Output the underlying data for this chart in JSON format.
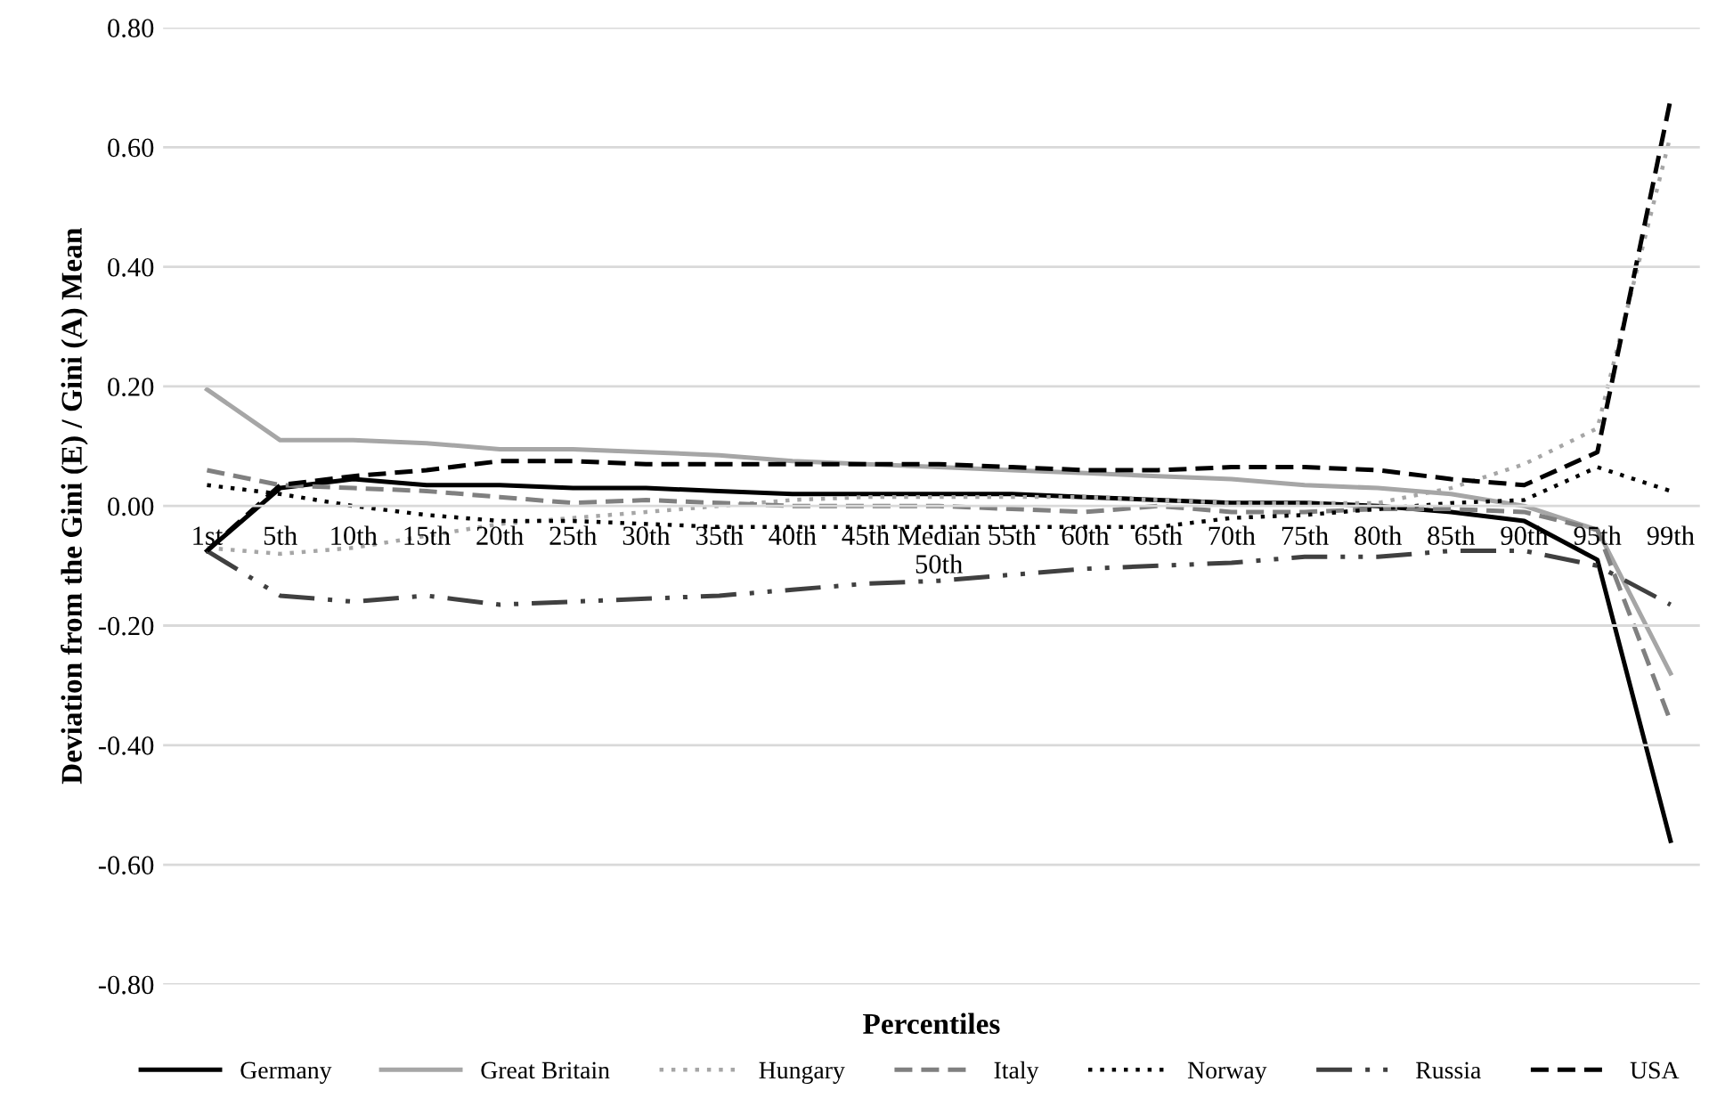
{
  "chart_data": {
    "type": "line",
    "xlabel": "Percentiles",
    "ylabel": "Deviation from the Gini (E) / Gini (A) Mean",
    "categories": [
      "1st",
      "5th",
      "10th",
      "15th",
      "20th",
      "25th",
      "30th",
      "35th",
      "40th",
      "45th",
      "Median\n50th",
      "55th",
      "60th",
      "65th",
      "70th",
      "75th",
      "80th",
      "85th",
      "90th",
      "95th",
      "99th"
    ],
    "ylim": [
      -0.8,
      0.8
    ],
    "yticks": [
      {
        "value": -0.8,
        "label": "-0.80"
      },
      {
        "value": -0.6,
        "label": "-0.60"
      },
      {
        "value": -0.4,
        "label": "-0.40"
      },
      {
        "value": -0.2,
        "label": "-0.20"
      },
      {
        "value": 0,
        "label": "0.00"
      },
      {
        "value": 0.2,
        "label": "0.20"
      },
      {
        "value": 0.4,
        "label": "0.40"
      },
      {
        "value": 0.6,
        "label": "0.60"
      },
      {
        "value": 0.8,
        "label": "0.80"
      }
    ],
    "grid": "y",
    "legend": "bottom",
    "marker": "none",
    "series": [
      {
        "name": "Germany",
        "color": "#000000",
        "line_style": "solid",
        "values": [
          -0.075,
          0.03,
          0.045,
          0.035,
          0.035,
          0.03,
          0.03,
          0.025,
          0.02,
          0.02,
          0.02,
          0.02,
          0.015,
          0.01,
          0.005,
          0.005,
          0.0,
          -0.01,
          -0.025,
          -0.09,
          -0.56
        ]
      },
      {
        "name": "Great Britain",
        "color": "#a6a6a6",
        "line_style": "solid",
        "values": [
          0.195,
          0.11,
          0.11,
          0.105,
          0.095,
          0.095,
          0.09,
          0.085,
          0.075,
          0.07,
          0.065,
          0.06,
          0.055,
          0.05,
          0.045,
          0.035,
          0.03,
          0.02,
          0.0,
          -0.04,
          -0.28
        ]
      },
      {
        "name": "Hungary",
        "color": "#a6a6a6",
        "line_style": "dotted",
        "values": [
          -0.07,
          -0.08,
          -0.07,
          -0.05,
          -0.03,
          -0.02,
          -0.01,
          0.0,
          0.01,
          0.015,
          0.015,
          0.015,
          0.015,
          0.01,
          0.005,
          0.005,
          0.005,
          0.03,
          0.07,
          0.13,
          0.62
        ]
      },
      {
        "name": "Italy",
        "color": "#808080",
        "line_style": "dashed",
        "values": [
          0.06,
          0.035,
          0.03,
          0.025,
          0.015,
          0.005,
          0.01,
          0.005,
          0.0,
          0.0,
          0.0,
          -0.005,
          -0.01,
          0.0,
          -0.01,
          -0.01,
          -0.005,
          -0.005,
          -0.01,
          -0.04,
          -0.36
        ]
      },
      {
        "name": "Norway",
        "color": "#000000",
        "line_style": "dotted",
        "values": [
          0.035,
          0.02,
          0.0,
          -0.015,
          -0.025,
          -0.025,
          -0.03,
          -0.035,
          -0.035,
          -0.035,
          -0.035,
          -0.035,
          -0.035,
          -0.035,
          -0.02,
          -0.015,
          -0.005,
          0.005,
          0.01,
          0.065,
          0.025
        ]
      },
      {
        "name": "Russia",
        "color": "#404040",
        "line_style": "dashdot",
        "values": [
          -0.075,
          -0.15,
          -0.16,
          -0.15,
          -0.165,
          -0.16,
          -0.155,
          -0.15,
          -0.14,
          -0.13,
          -0.125,
          -0.115,
          -0.105,
          -0.1,
          -0.095,
          -0.085,
          -0.085,
          -0.075,
          -0.075,
          -0.1,
          -0.165
        ]
      },
      {
        "name": "USA",
        "color": "#000000",
        "line_style": "dashed",
        "values": [
          -0.075,
          0.035,
          0.05,
          0.06,
          0.075,
          0.075,
          0.07,
          0.07,
          0.07,
          0.07,
          0.07,
          0.065,
          0.06,
          0.06,
          0.065,
          0.065,
          0.06,
          0.045,
          0.035,
          0.09,
          0.68
        ]
      }
    ]
  }
}
